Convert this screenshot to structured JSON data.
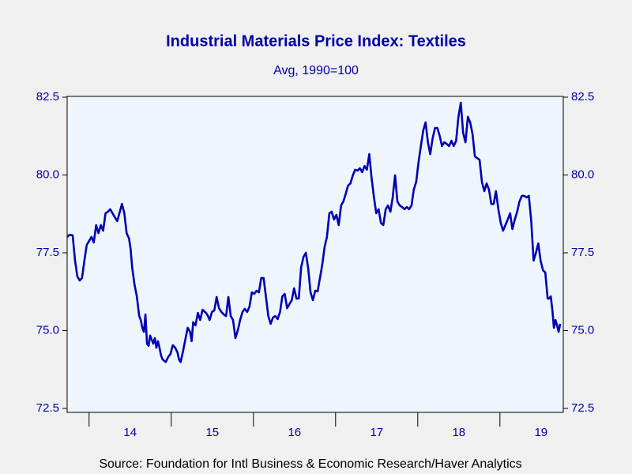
{
  "chart_data": {
    "type": "line",
    "title": "Industrial Materials Price Index: Textiles",
    "subtitle": "Avg, 1990=100",
    "source": "Source:  Foundation for Intl Business & Economic Research/Haver Analytics",
    "xlim": [
      2013.733,
      2019.771
    ],
    "xticks": [
      2014,
      2015,
      2016,
      2017,
      2018,
      2019
    ],
    "xtick_labels": [
      {
        "value": 2014.5,
        "label": "14"
      },
      {
        "value": 2015.5,
        "label": "15"
      },
      {
        "value": 2016.5,
        "label": "16"
      },
      {
        "value": 2017.5,
        "label": "17"
      },
      {
        "value": 2018.5,
        "label": "18"
      },
      {
        "value": 2019.5,
        "label": "19"
      }
    ],
    "ylim": [
      72.5,
      82.5
    ],
    "yticks": [
      72.5,
      {
        "value": 75,
        "label": "75.0"
      },
      77.5,
      {
        "value": 80,
        "label": "80.0"
      },
      82.5
    ],
    "y2lim": [
      72.5,
      82.5
    ],
    "y2ticks": [
      72.5,
      {
        "value": 75,
        "label": "75.0"
      },
      77.5,
      {
        "value": 80,
        "label": "80.0"
      },
      82.5
    ],
    "grid": false,
    "x": [
      2013.733,
      2013.762,
      2013.8,
      2013.829,
      2013.857,
      2013.886,
      2013.914,
      2013.943,
      2013.971,
      2014.0,
      2014.029,
      2014.057,
      2014.086,
      2014.114,
      2014.143,
      2014.171,
      2014.2,
      2014.229,
      2014.257,
      2014.314,
      2014.343,
      2014.4,
      2014.429,
      2014.457,
      2014.486,
      2014.505,
      2014.524,
      2014.552,
      2014.581,
      2014.61,
      2014.629,
      2014.648,
      2014.667,
      2014.686,
      2014.705,
      2014.724,
      2014.743,
      2014.762,
      2014.781,
      2014.8,
      2014.819,
      2014.838,
      2014.857,
      2014.876,
      2014.895,
      2014.933,
      2014.962,
      2014.99,
      2015.019,
      2015.048,
      2015.076,
      2015.095,
      2015.114,
      2015.143,
      2015.171,
      2015.2,
      2015.229,
      2015.248,
      2015.267,
      2015.295,
      2015.324,
      2015.352,
      2015.381,
      2015.41,
      2015.438,
      2015.467,
      2015.495,
      2015.524,
      2015.552,
      2015.581,
      2015.61,
      2015.638,
      2015.667,
      2015.695,
      2015.724,
      2015.752,
      2015.781,
      2015.81,
      2015.838,
      2015.867,
      2015.895,
      2015.924,
      2015.952,
      2015.981,
      2016.01,
      2016.038,
      2016.067,
      2016.095,
      2016.124,
      2016.152,
      2016.181,
      2016.21,
      2016.238,
      2016.267,
      2016.295,
      2016.324,
      2016.352,
      2016.381,
      2016.41,
      2016.438,
      2016.467,
      2016.495,
      2016.524,
      2016.552,
      2016.581,
      2016.61,
      2016.638,
      2016.667,
      2016.695,
      2016.724,
      2016.752,
      2016.781,
      2016.81,
      2016.838,
      2016.867,
      2016.895,
      2016.924,
      2016.952,
      2016.981,
      2017.01,
      2017.038,
      2017.067,
      2017.095,
      2017.124,
      2017.152,
      2017.181,
      2017.21,
      2017.238,
      2017.267,
      2017.295,
      2017.324,
      2017.352,
      2017.381,
      2017.41,
      2017.438,
      2017.467,
      2017.495,
      2017.524,
      2017.552,
      2017.581,
      2017.61,
      2017.638,
      2017.667,
      2017.695,
      2017.724,
      2017.752,
      2017.781,
      2017.81,
      2017.838,
      2017.867,
      2017.895,
      2017.924,
      2017.952,
      2017.981,
      2018.01,
      2018.038,
      2018.067,
      2018.095,
      2018.124,
      2018.152,
      2018.181,
      2018.21,
      2018.238,
      2018.267,
      2018.295,
      2018.324,
      2018.352,
      2018.381,
      2018.41,
      2018.438,
      2018.467,
      2018.495,
      2018.524,
      2018.552,
      2018.581,
      2018.61,
      2018.638,
      2018.667,
      2018.695,
      2018.724,
      2018.752,
      2018.781,
      2018.81,
      2018.838,
      2018.867,
      2018.895,
      2018.924,
      2018.952,
      2018.981,
      2019.01,
      2019.038,
      2019.067,
      2019.095,
      2019.124,
      2019.152,
      2019.181,
      2019.21,
      2019.238,
      2019.267,
      2019.295,
      2019.324,
      2019.352,
      2019.381,
      2019.41,
      2019.438,
      2019.467,
      2019.495,
      2019.524,
      2019.552,
      2019.581,
      2019.6,
      2019.619,
      2019.638,
      2019.657,
      2019.676,
      2019.695,
      2019.714,
      2019.733
    ],
    "series": [
      {
        "color": "#0000b4",
        "values": [
          78.01,
          78.08,
          78.06,
          77.25,
          76.74,
          76.61,
          76.69,
          77.25,
          77.75,
          77.88,
          78.01,
          77.83,
          78.39,
          78.13,
          78.39,
          78.21,
          78.77,
          78.82,
          78.9,
          78.64,
          78.52,
          79.07,
          78.77,
          78.13,
          77.96,
          77.63,
          77.04,
          76.49,
          76.1,
          75.47,
          75.34,
          75.09,
          74.96,
          75.52,
          74.58,
          74.51,
          74.84,
          74.71,
          74.58,
          74.76,
          74.45,
          74.66,
          74.45,
          74.2,
          74.07,
          73.99,
          74.15,
          74.25,
          74.53,
          74.45,
          74.3,
          74.07,
          73.99,
          74.33,
          74.71,
          75.09,
          74.96,
          74.66,
          75.27,
          75.17,
          75.57,
          75.34,
          75.67,
          75.6,
          75.52,
          75.34,
          75.6,
          75.65,
          76.08,
          75.72,
          75.6,
          75.52,
          75.47,
          76.08,
          75.47,
          75.34,
          74.76,
          75.01,
          75.34,
          75.6,
          75.7,
          75.6,
          75.77,
          76.23,
          76.18,
          76.28,
          76.23,
          76.69,
          76.69,
          76.1,
          75.47,
          75.22,
          75.42,
          75.47,
          75.37,
          75.6,
          76.1,
          76.18,
          75.72,
          75.85,
          75.98,
          76.36,
          76.03,
          76.03,
          77.04,
          77.37,
          77.5,
          76.99,
          76.23,
          75.98,
          76.28,
          76.26,
          76.69,
          77.12,
          77.7,
          78.01,
          78.77,
          78.82,
          78.57,
          78.72,
          78.39,
          79.02,
          79.15,
          79.4,
          79.66,
          79.73,
          79.99,
          80.17,
          80.14,
          80.22,
          80.09,
          80.29,
          80.17,
          80.67,
          79.91,
          79.28,
          78.77,
          78.9,
          78.46,
          78.39,
          78.9,
          79.02,
          78.82,
          79.28,
          79.99,
          79.15,
          79.02,
          78.97,
          78.9,
          78.97,
          78.9,
          79.02,
          79.53,
          79.78,
          80.42,
          80.93,
          81.43,
          81.69,
          81.05,
          80.67,
          81.18,
          81.51,
          81.51,
          81.26,
          80.93,
          81.05,
          81.0,
          80.93,
          81.1,
          80.93,
          81.1,
          81.87,
          82.32,
          81.36,
          81.05,
          81.87,
          81.69,
          81.31,
          80.6,
          80.54,
          80.49,
          79.78,
          79.48,
          79.73,
          79.53,
          79.07,
          79.07,
          79.48,
          78.9,
          78.46,
          78.21,
          78.39,
          78.57,
          78.77,
          78.26,
          78.57,
          78.82,
          79.15,
          79.33,
          79.33,
          79.28,
          79.33,
          78.52,
          77.25,
          77.5,
          77.8,
          77.25,
          76.94,
          76.87,
          76.03,
          76.03,
          76.1,
          75.67,
          75.09,
          75.34,
          75.17,
          74.96,
          75.22
        ]
      }
    ]
  }
}
